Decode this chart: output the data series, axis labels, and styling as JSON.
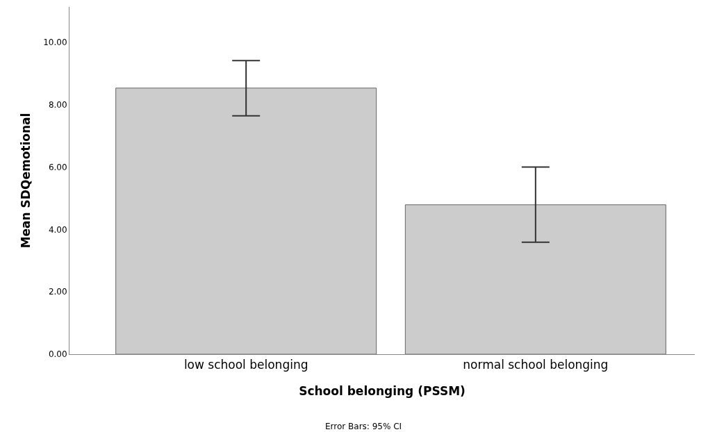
{
  "chart_data": {
    "type": "bar",
    "categories": [
      "low school belonging",
      "normal school belonging"
    ],
    "values": [
      8.53,
      4.79
    ],
    "errors": [
      [
        7.64,
        9.41
      ],
      [
        3.59,
        6.0
      ]
    ],
    "color": "#cccccc",
    "xlabel": "School belonging (PSSM)",
    "ylabel": "Mean SDQemotional",
    "ylim": [
      0,
      11.13
    ],
    "yticks": [
      {
        "value": 0,
        "label": "0.00"
      },
      {
        "value": 2,
        "label": "2.00"
      },
      {
        "value": 4,
        "label": "4.00"
      },
      {
        "value": 6,
        "label": "6.00"
      },
      {
        "value": 8,
        "label": "8.00"
      },
      {
        "value": 10,
        "label": "10.00"
      }
    ],
    "annotations": [
      "Error Bars: 95% CI"
    ]
  }
}
